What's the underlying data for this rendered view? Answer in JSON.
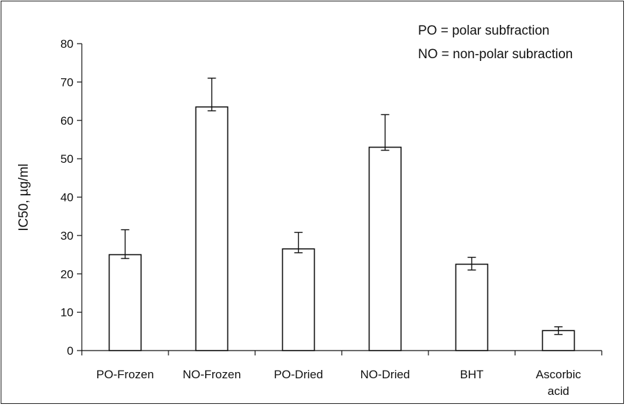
{
  "chart_data": {
    "type": "bar",
    "categories": [
      [
        "PO-Frozen"
      ],
      [
        "NO-Frozen"
      ],
      [
        "PO-Dried"
      ],
      [
        "NO-Dried"
      ],
      [
        "BHT"
      ],
      [
        "Ascorbic",
        "acid"
      ]
    ],
    "values": [
      25,
      63.5,
      26.5,
      53,
      22.5,
      5.2
    ],
    "error_upper": [
      31.5,
      71,
      30.8,
      61.5,
      24.3,
      6.2
    ],
    "error_lower": [
      24.0,
      62.5,
      25.5,
      52.2,
      21.0,
      4.2
    ],
    "ylabel": "IC50, µg/ml",
    "ylim": [
      0,
      80
    ],
    "yticks": [
      0,
      10,
      20,
      30,
      40,
      50,
      60,
      70,
      80
    ],
    "legend_notes": [
      "PO = polar subfraction",
      "NO = non-polar subraction"
    ],
    "legend_placement": "top-right",
    "grid": false,
    "bar_fill": "#ffffff",
    "bar_stroke": "#111111"
  }
}
